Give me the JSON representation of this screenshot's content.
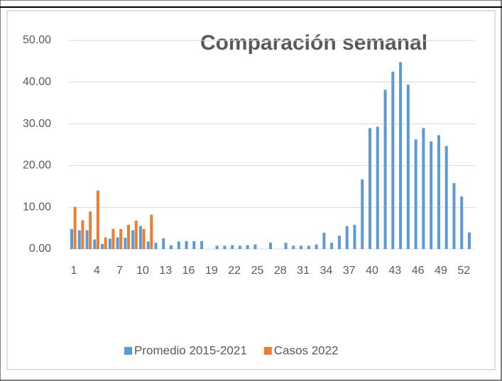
{
  "chart_data": {
    "type": "bar",
    "title": "Comparación  semanal",
    "categories": [
      1,
      null,
      null,
      4,
      null,
      null,
      7,
      null,
      null,
      10,
      null,
      null,
      13,
      null,
      null,
      16,
      null,
      null,
      19,
      null,
      null,
      22,
      null,
      null,
      25,
      null,
      null,
      28,
      null,
      null,
      31,
      null,
      null,
      34,
      null,
      null,
      37,
      null,
      null,
      40,
      null,
      null,
      43,
      null,
      null,
      46,
      null,
      null,
      49,
      null,
      null,
      52,
      null
    ],
    "series": [
      {
        "name": "Promedio 2015-2021",
        "color": "#5b9bd5",
        "values": [
          4.8,
          4.5,
          4.5,
          2.3,
          1.2,
          2.5,
          2.8,
          2.7,
          4.5,
          5.5,
          1.8,
          1.5,
          2.6,
          0.9,
          1.8,
          1.9,
          1.9,
          1.9,
          0,
          0.8,
          0.8,
          0.9,
          0.8,
          0.9,
          1.1,
          0,
          1.5,
          0,
          1.5,
          0.8,
          0.8,
          0.8,
          1.1,
          3.9,
          1.5,
          3.2,
          5.5,
          5.8,
          16.7,
          29.0,
          29.3,
          38.2,
          42.5,
          44.8,
          39.4,
          26.3,
          29.0,
          25.8,
          27.3,
          24.7,
          15.8,
          12.6,
          4.0
        ]
      },
      {
        "name": "Casos 2022",
        "color": "#ed7d31",
        "values": [
          10.1,
          6.9,
          9.0,
          14.0,
          2.8,
          4.8,
          4.8,
          5.8,
          6.8,
          4.8,
          8.2,
          null,
          null,
          null,
          null,
          null,
          null,
          null,
          null,
          null,
          null,
          null,
          null,
          null,
          null,
          null,
          null,
          null,
          null,
          null,
          null,
          null,
          null,
          null,
          null,
          null,
          null,
          null,
          null,
          null,
          null,
          null,
          null,
          null,
          null,
          null,
          null,
          null,
          null,
          null,
          null,
          null,
          null
        ]
      }
    ],
    "ylim": [
      0,
      50
    ],
    "yticks": [
      {
        "value": 0,
        "label": "0.00"
      },
      {
        "value": 10,
        "label": "10.00"
      },
      {
        "value": 20,
        "label": "20.00"
      },
      {
        "value": 30,
        "label": "30.00"
      },
      {
        "value": 40,
        "label": "40.00"
      },
      {
        "value": 50,
        "label": "50.00"
      }
    ],
    "grid": true,
    "legend": "bottom"
  }
}
